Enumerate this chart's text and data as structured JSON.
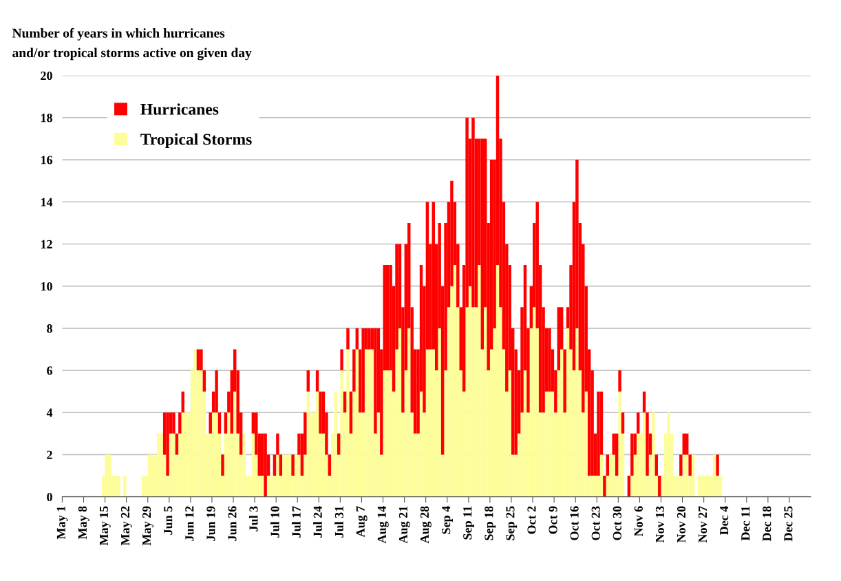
{
  "chart_data": {
    "type": "bar",
    "stacked": true,
    "title": "Number of years in which hurricanes\nand/or tropical storms active on given day",
    "categories": [
      "May 1",
      null,
      null,
      null,
      null,
      null,
      null,
      "May 8",
      null,
      null,
      null,
      null,
      null,
      null,
      "May 15",
      null,
      null,
      null,
      null,
      null,
      null,
      "May 22",
      null,
      null,
      null,
      null,
      null,
      null,
      "May 29",
      null,
      null,
      null,
      null,
      null,
      null,
      "Jun 5",
      null,
      null,
      null,
      null,
      null,
      null,
      "Jun 12",
      null,
      null,
      null,
      null,
      null,
      null,
      "Jun 19",
      null,
      null,
      null,
      null,
      null,
      null,
      "Jun 26",
      null,
      null,
      null,
      null,
      null,
      null,
      "Jul 3",
      null,
      null,
      null,
      null,
      null,
      null,
      "Jul 10",
      null,
      null,
      null,
      null,
      null,
      null,
      "Jul 17",
      null,
      null,
      null,
      null,
      null,
      null,
      "Jul 24",
      null,
      null,
      null,
      null,
      null,
      null,
      "Jul 31",
      null,
      null,
      null,
      null,
      null,
      null,
      "Aug 7",
      null,
      null,
      null,
      null,
      null,
      null,
      "Aug 14",
      null,
      null,
      null,
      null,
      null,
      null,
      "Aug 21",
      null,
      null,
      null,
      null,
      null,
      null,
      "Aug 28",
      null,
      null,
      null,
      null,
      null,
      null,
      "Sep 4",
      null,
      null,
      null,
      null,
      null,
      null,
      "Sep 11",
      null,
      null,
      null,
      null,
      null,
      null,
      "Sep 18",
      null,
      null,
      null,
      null,
      null,
      null,
      "Sep 25",
      null,
      null,
      null,
      null,
      null,
      null,
      "Oct 2",
      null,
      null,
      null,
      null,
      null,
      null,
      "Oct 9",
      null,
      null,
      null,
      null,
      null,
      null,
      "Oct 16",
      null,
      null,
      null,
      null,
      null,
      null,
      "Oct 23",
      null,
      null,
      null,
      null,
      null,
      null,
      "Oct 30",
      null,
      null,
      null,
      null,
      null,
      null,
      "Nov 6",
      null,
      null,
      null,
      null,
      null,
      null,
      "Nov 13",
      null,
      null,
      null,
      null,
      null,
      null,
      "Nov 20",
      null,
      null,
      null,
      null,
      null,
      null,
      "Nov 27",
      null,
      null,
      null,
      null,
      null,
      null,
      "Dec 4",
      null,
      null,
      null,
      null,
      null,
      null,
      "Dec 11",
      null,
      null,
      null,
      null,
      null,
      null,
      "Dec 18",
      null,
      null,
      null,
      null,
      null,
      null,
      "Dec 25",
      null,
      null,
      null,
      null,
      null,
      null
    ],
    "series": [
      {
        "name": "Tropical Storms",
        "color": "#fdfd99",
        "values": [
          0,
          0,
          0,
          0,
          0,
          0,
          0,
          0,
          0,
          0,
          0,
          0,
          0,
          1,
          2,
          2,
          1,
          1,
          1,
          0,
          1,
          0,
          0,
          0,
          0,
          0,
          1,
          1,
          2,
          2,
          2,
          3,
          3,
          2,
          1,
          3,
          3,
          2,
          3,
          4,
          4,
          4,
          6,
          7,
          6,
          6,
          5,
          3,
          3,
          4,
          4,
          3,
          1,
          3,
          4,
          3,
          5,
          3,
          2,
          3,
          1,
          1,
          3,
          2,
          1,
          1,
          0,
          1,
          1,
          1,
          2,
          1,
          2,
          2,
          2,
          1,
          2,
          2,
          1,
          2,
          5,
          4,
          4,
          5,
          3,
          3,
          2,
          1,
          3,
          5,
          2,
          6,
          4,
          7,
          3,
          5,
          7,
          4,
          4,
          7,
          7,
          7,
          3,
          4,
          2,
          6,
          6,
          6,
          5,
          7,
          8,
          4,
          6,
          8,
          4,
          3,
          3,
          5,
          4,
          7,
          7,
          7,
          6,
          8,
          2,
          6,
          9,
          10,
          11,
          9,
          6,
          5,
          9,
          10,
          9,
          9,
          11,
          7,
          9,
          6,
          7,
          8,
          11,
          9,
          7,
          5,
          6,
          2,
          2,
          3,
          4,
          6,
          4,
          8,
          9,
          8,
          4,
          4,
          5,
          5,
          5,
          4,
          6,
          7,
          4,
          8,
          7,
          6,
          8,
          6,
          4,
          5,
          1,
          1,
          1,
          1,
          2,
          0,
          1,
          2,
          2,
          1,
          5,
          3,
          0,
          0,
          1,
          2,
          3,
          3,
          4,
          1,
          2,
          4,
          1,
          0,
          1,
          3,
          4,
          3,
          1,
          1,
          1,
          2,
          2,
          1,
          2,
          0,
          1,
          1,
          1,
          1,
          1,
          2,
          1,
          1,
          0,
          0,
          0,
          0,
          0,
          0,
          0,
          0,
          0,
          0,
          0,
          0,
          0,
          0,
          0,
          0,
          0,
          0,
          0,
          0,
          0,
          0,
          0,
          0,
          0,
          0,
          0,
          0,
          0
        ]
      },
      {
        "name": "Hurricanes",
        "color": "#ff0000",
        "values": [
          0,
          0,
          0,
          0,
          0,
          0,
          0,
          0,
          0,
          0,
          0,
          0,
          0,
          0,
          0,
          0,
          0,
          0,
          0,
          0,
          0,
          0,
          0,
          0,
          0,
          0,
          0,
          0,
          0,
          0,
          0,
          0,
          0,
          2,
          3,
          1,
          1,
          1,
          1,
          1,
          0,
          0,
          0,
          0,
          1,
          1,
          1,
          0,
          1,
          1,
          2,
          1,
          1,
          1,
          1,
          3,
          2,
          3,
          2,
          0,
          0,
          0,
          1,
          2,
          2,
          2,
          3,
          1,
          0,
          1,
          1,
          1,
          0,
          0,
          0,
          1,
          0,
          1,
          2,
          2,
          1,
          0,
          0,
          1,
          2,
          2,
          2,
          1,
          0,
          0,
          1,
          1,
          1,
          1,
          2,
          2,
          1,
          3,
          4,
          1,
          1,
          1,
          5,
          4,
          5,
          5,
          5,
          5,
          5,
          5,
          4,
          5,
          6,
          5,
          5,
          4,
          4,
          6,
          6,
          7,
          5,
          7,
          6,
          5,
          8,
          7,
          5,
          5,
          3,
          3,
          3,
          6,
          9,
          7,
          9,
          8,
          6,
          10,
          8,
          7,
          9,
          8,
          9,
          8,
          7,
          7,
          5,
          6,
          5,
          3,
          5,
          5,
          4,
          2,
          4,
          6,
          7,
          5,
          3,
          3,
          2,
          2,
          3,
          2,
          3,
          1,
          4,
          8,
          8,
          7,
          8,
          5,
          6,
          5,
          2,
          4,
          3,
          1,
          1,
          0,
          1,
          2,
          1,
          1,
          0,
          1,
          2,
          1,
          1,
          0,
          1,
          3,
          1,
          0,
          1,
          1,
          0,
          0,
          0,
          0,
          0,
          0,
          1,
          1,
          1,
          1,
          0,
          0,
          0,
          0,
          0,
          0,
          0,
          0,
          1,
          0,
          0,
          0,
          0,
          0,
          0,
          0,
          0,
          0,
          0,
          0,
          0,
          0,
          0,
          0,
          0,
          0,
          0,
          0,
          0,
          0,
          0,
          0,
          0,
          0,
          0,
          0,
          0,
          0,
          0
        ]
      }
    ],
    "ylim": [
      0,
      20
    ],
    "yticks": [
      0,
      2,
      4,
      6,
      8,
      10,
      12,
      14,
      16,
      18,
      20
    ],
    "grid": "y",
    "legend": "top left"
  }
}
